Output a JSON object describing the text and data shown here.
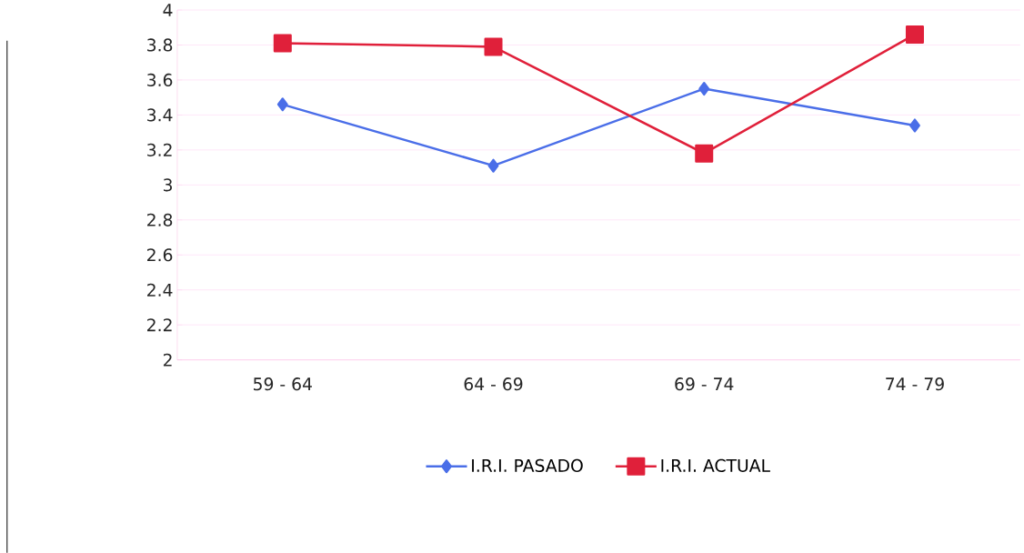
{
  "chart_data": {
    "type": "line",
    "categories": [
      "59 - 64",
      "64 - 69",
      "69 - 74",
      "74 - 79"
    ],
    "series": [
      {
        "name": "I.R.I. PASADO",
        "color": "#4a6ee8",
        "marker": "diamond",
        "values": [
          3.46,
          3.11,
          3.55,
          3.34
        ]
      },
      {
        "name": "I.R.I. ACTUAL",
        "color": "#e0203a",
        "marker": "square",
        "values": [
          3.81,
          3.79,
          3.18,
          3.86
        ]
      }
    ],
    "ylim": [
      2,
      4
    ],
    "yticks": [
      2,
      2.2,
      2.4,
      2.6,
      2.8,
      3,
      3.2,
      3.4,
      3.6,
      3.8,
      4
    ],
    "grid": "y",
    "legend": "bottom",
    "line_style": "solid"
  }
}
